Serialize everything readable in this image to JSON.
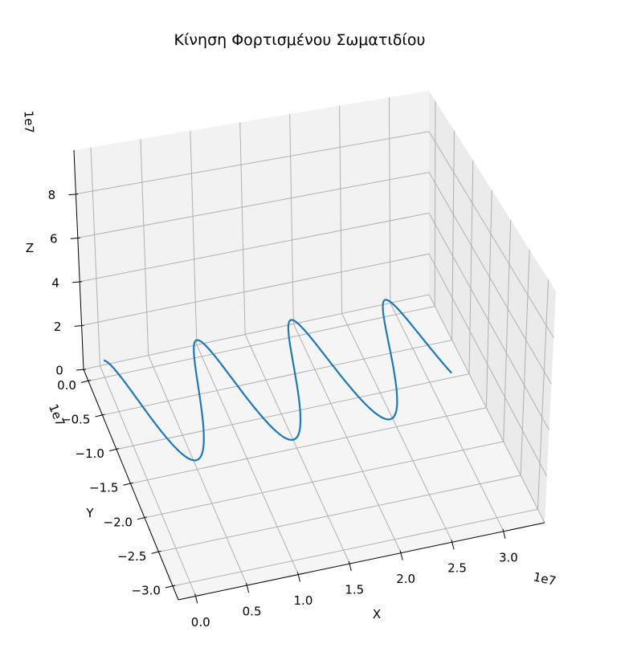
{
  "chart_data": {
    "type": "line",
    "projection": "3d",
    "title": "Κίνηση Φορτισμένου Σωματιδίου",
    "xlabel": "X",
    "ylabel": "Y",
    "zlabel": "Z",
    "x_offset_label": "1e7",
    "y_offset_label": "1e7",
    "z_offset_label": "1e7",
    "x_ticks": [
      "0.0",
      "0.5",
      "1.0",
      "1.5",
      "2.0",
      "2.5",
      "3.0"
    ],
    "y_ticks": [
      "0.0",
      "−0.5",
      "−1.0",
      "−1.5",
      "−2.0",
      "−2.5",
      "−3.0"
    ],
    "z_ticks": [
      "0",
      "2",
      "4",
      "6",
      "8"
    ],
    "x_tick_values": [
      0.0,
      0.5,
      1.0,
      1.5,
      2.0,
      2.5,
      3.0
    ],
    "y_tick_values": [
      0.0,
      -0.5,
      -1.0,
      -1.5,
      -2.0,
      -2.5,
      -3.0
    ],
    "z_tick_values": [
      0,
      2,
      4,
      6,
      8
    ],
    "xlim": [
      -0.17,
      3.4
    ],
    "ylim": [
      -3.2,
      0.17
    ],
    "zlim": [
      0,
      10
    ],
    "grid": true,
    "series": [
      {
        "color": "#1f77b4",
        "curve": "helix",
        "turns": 3.3,
        "x_start": 0.0,
        "x_end": 3.2,
        "radius": 0.8,
        "y_center": -0.8,
        "z_center": 0.8,
        "units": "1e7"
      }
    ]
  }
}
